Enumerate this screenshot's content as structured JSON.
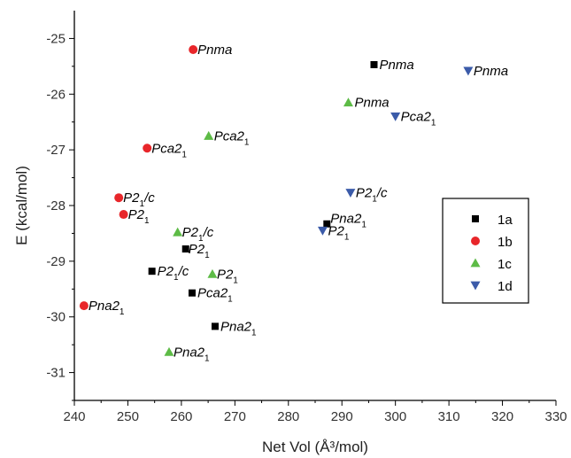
{
  "chart_data": {
    "type": "scatter",
    "xlabel": "Net Vol (Å³/mol)",
    "ylabel": "E (kcal/mol)",
    "xlim": [
      240,
      330
    ],
    "ylim": [
      -31.5,
      -24.5
    ],
    "x_ticks": [
      240,
      250,
      260,
      270,
      280,
      290,
      300,
      310,
      320,
      330
    ],
    "y_ticks": [
      -25,
      -26,
      -27,
      -28,
      -29,
      -30,
      -31
    ],
    "legend_position": "right",
    "series": [
      {
        "name": "1a",
        "marker": "square",
        "color": "#000000",
        "points": [
          {
            "x": 296.0,
            "y": -25.47,
            "label": "Pnma"
          },
          {
            "x": 287.2,
            "y": -28.33,
            "label": "Pna2₁"
          },
          {
            "x": 260.8,
            "y": -28.78,
            "label": "P2₁"
          },
          {
            "x": 254.5,
            "y": -29.18,
            "label": "P2₁/c"
          },
          {
            "x": 262.0,
            "y": -29.57,
            "label": "Pca2₁"
          },
          {
            "x": 266.3,
            "y": -30.17,
            "label": "Pna2₁"
          }
        ]
      },
      {
        "name": "1b",
        "marker": "circle",
        "color": "#e8262a",
        "points": [
          {
            "x": 262.2,
            "y": -25.2,
            "label": "Pnma"
          },
          {
            "x": 253.6,
            "y": -26.97,
            "label": "Pca2₁"
          },
          {
            "x": 248.3,
            "y": -27.86,
            "label": "P2₁/c"
          },
          {
            "x": 249.2,
            "y": -28.16,
            "label": "P2₁"
          },
          {
            "x": 241.8,
            "y": -29.8,
            "label": "Pna2₁"
          }
        ]
      },
      {
        "name": "1c",
        "marker": "triangle-up",
        "color": "#5dbb46",
        "points": [
          {
            "x": 291.2,
            "y": -26.15,
            "label": "Pnma"
          },
          {
            "x": 265.1,
            "y": -26.75,
            "label": "Pca2₁"
          },
          {
            "x": 259.3,
            "y": -28.48,
            "label": "P2₁/c"
          },
          {
            "x": 265.8,
            "y": -29.23,
            "label": "P2₁"
          },
          {
            "x": 257.7,
            "y": -30.63,
            "label": "Pna2₁"
          }
        ]
      },
      {
        "name": "1d",
        "marker": "triangle-down",
        "color": "#3b5ba9",
        "points": [
          {
            "x": 313.6,
            "y": -25.58,
            "label": "Pnma"
          },
          {
            "x": 300.0,
            "y": -26.4,
            "label": "Pca2₁"
          },
          {
            "x": 291.6,
            "y": -27.77,
            "label": "P2₁/c"
          },
          {
            "x": 286.4,
            "y": -28.45,
            "label": "P2₁"
          }
        ]
      }
    ]
  }
}
